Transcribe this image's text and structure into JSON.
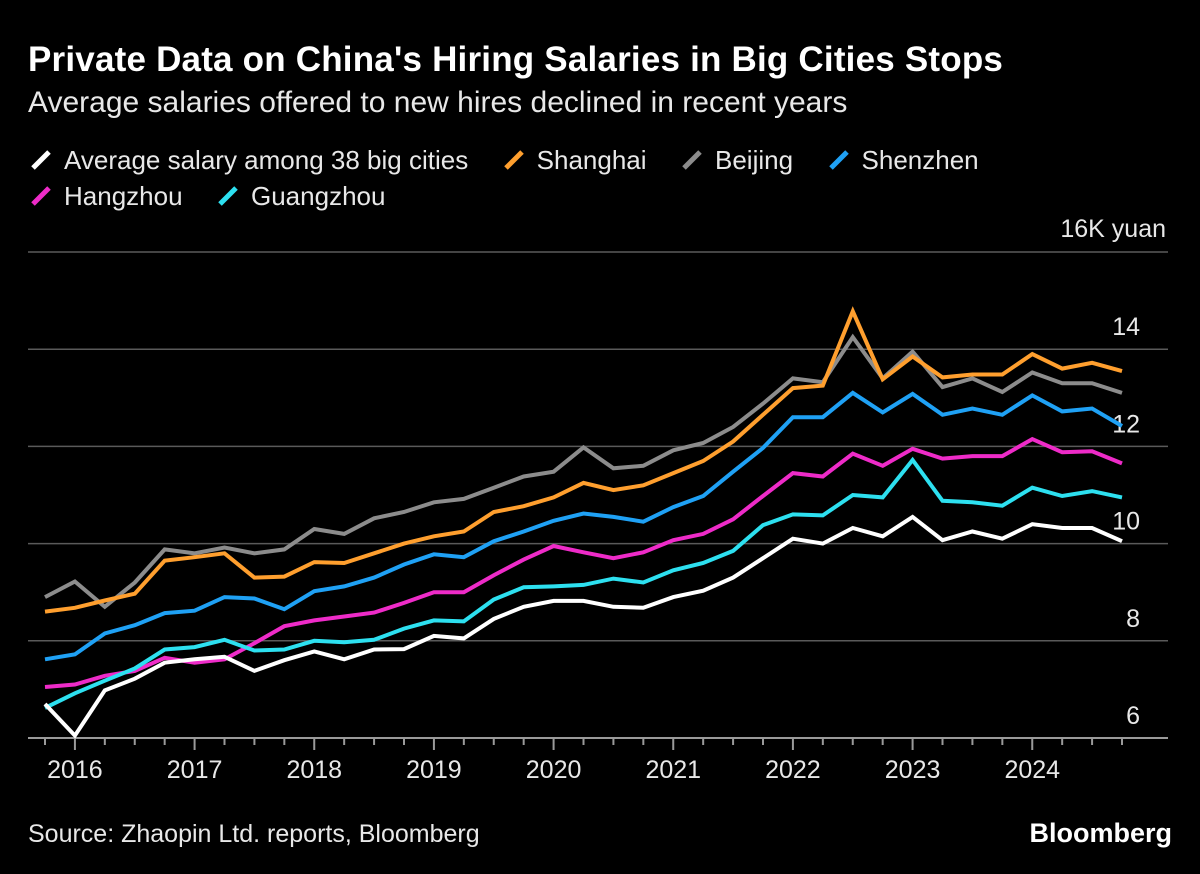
{
  "title": "Private Data on China's Hiring Salaries in Big Cities Stops",
  "subtitle": "Average salaries offered to new hires declined in recent years",
  "source": "Source: Zhaopin Ltd. reports, Bloomberg",
  "brand": "Bloomberg",
  "chart_data": {
    "type": "line",
    "title": "Private Data on China's Hiring Salaries in Big Cities Stops",
    "subtitle": "Average salaries offered to new hires declined in recent years",
    "ylabel": "16K yuan",
    "y_unit_label": "16K yuan",
    "y_ticks": [
      "6",
      "8",
      "10",
      "12",
      "14"
    ],
    "y_tick_values": [
      6,
      8,
      10,
      12,
      14
    ],
    "ylim": [
      6,
      16
    ],
    "x_ticks": [
      "2016",
      "2017",
      "2018",
      "2019",
      "2020",
      "2021",
      "2022",
      "2023",
      "2024"
    ],
    "x_tick_values": [
      2016,
      2017,
      2018,
      2019,
      2020,
      2021,
      2022,
      2023,
      2024
    ],
    "xlim": [
      2015.75,
      2025.0
    ],
    "x": [
      2015.75,
      2016.0,
      2016.25,
      2016.5,
      2016.75,
      2017.0,
      2017.25,
      2017.5,
      2017.75,
      2018.0,
      2018.25,
      2018.5,
      2018.75,
      2019.0,
      2019.25,
      2019.5,
      2019.75,
      2020.0,
      2020.25,
      2020.5,
      2020.75,
      2021.0,
      2021.25,
      2021.5,
      2021.75,
      2022.0,
      2022.25,
      2022.5,
      2022.75,
      2023.0,
      2023.25,
      2023.5,
      2023.75,
      2024.0,
      2024.25,
      2024.5,
      2024.75
    ],
    "series": [
      {
        "name": "Average salary among 38 big cities",
        "color": "#ffffff",
        "values": [
          6.7,
          6.05,
          6.98,
          7.22,
          7.55,
          7.62,
          7.67,
          7.38,
          7.6,
          7.78,
          7.62,
          7.82,
          7.83,
          8.1,
          8.05,
          8.45,
          8.7,
          8.82,
          8.82,
          8.7,
          8.68,
          8.9,
          9.03,
          9.3,
          9.7,
          10.1,
          10.0,
          10.32,
          10.15,
          10.55,
          10.07,
          10.25,
          10.1,
          10.4,
          10.32,
          10.32,
          10.05
        ]
      },
      {
        "name": "Shanghai",
        "color": "#ff9f2e",
        "values": [
          8.6,
          8.68,
          8.83,
          8.97,
          9.65,
          9.72,
          9.8,
          9.3,
          9.32,
          9.62,
          9.6,
          9.8,
          10.0,
          10.15,
          10.25,
          10.65,
          10.77,
          10.95,
          11.25,
          11.1,
          11.2,
          11.45,
          11.7,
          12.1,
          12.65,
          13.2,
          13.25,
          14.78,
          13.38,
          13.85,
          13.42,
          13.48,
          13.48,
          13.9,
          13.6,
          13.72,
          13.55
        ]
      },
      {
        "name": "Beijing",
        "color": "#8c8c8c",
        "values": [
          8.9,
          9.22,
          8.7,
          9.2,
          9.88,
          9.8,
          9.92,
          9.8,
          9.88,
          10.3,
          10.2,
          10.52,
          10.65,
          10.85,
          10.92,
          11.15,
          11.38,
          11.48,
          11.98,
          11.55,
          11.6,
          11.92,
          12.07,
          12.4,
          12.88,
          13.4,
          13.32,
          14.25,
          13.4,
          13.95,
          13.22,
          13.4,
          13.12,
          13.52,
          13.3,
          13.3,
          13.1
        ]
      },
      {
        "name": "Shenzhen",
        "color": "#1fa1f5",
        "values": [
          7.62,
          7.72,
          8.15,
          8.32,
          8.57,
          8.62,
          8.9,
          8.87,
          8.65,
          9.02,
          9.12,
          9.3,
          9.57,
          9.78,
          9.72,
          10.05,
          10.25,
          10.47,
          10.62,
          10.55,
          10.45,
          10.75,
          10.98,
          11.48,
          11.97,
          12.6,
          12.6,
          13.1,
          12.7,
          13.08,
          12.65,
          12.78,
          12.65,
          13.05,
          12.72,
          12.78,
          12.42
        ]
      },
      {
        "name": "Hangzhou",
        "color": "#ee2bc8",
        "values": [
          7.05,
          7.1,
          7.28,
          7.38,
          7.65,
          7.55,
          7.62,
          7.95,
          8.3,
          8.42,
          8.5,
          8.58,
          8.78,
          9.0,
          9.0,
          9.35,
          9.67,
          9.95,
          9.82,
          9.7,
          9.82,
          10.07,
          10.2,
          10.5,
          10.98,
          11.45,
          11.38,
          11.85,
          11.6,
          11.95,
          11.75,
          11.8,
          11.8,
          12.15,
          11.88,
          11.9,
          11.65
        ]
      },
      {
        "name": "Guangzhou",
        "color": "#2de0f0",
        "values": [
          6.62,
          6.92,
          7.18,
          7.43,
          7.82,
          7.87,
          8.02,
          7.8,
          7.82,
          8.0,
          7.97,
          8.02,
          8.25,
          8.42,
          8.4,
          8.85,
          9.1,
          9.12,
          9.15,
          9.28,
          9.2,
          9.45,
          9.6,
          9.85,
          10.38,
          10.6,
          10.58,
          11.0,
          10.95,
          11.72,
          10.88,
          10.85,
          10.78,
          11.15,
          10.98,
          11.08,
          10.95
        ]
      }
    ]
  }
}
